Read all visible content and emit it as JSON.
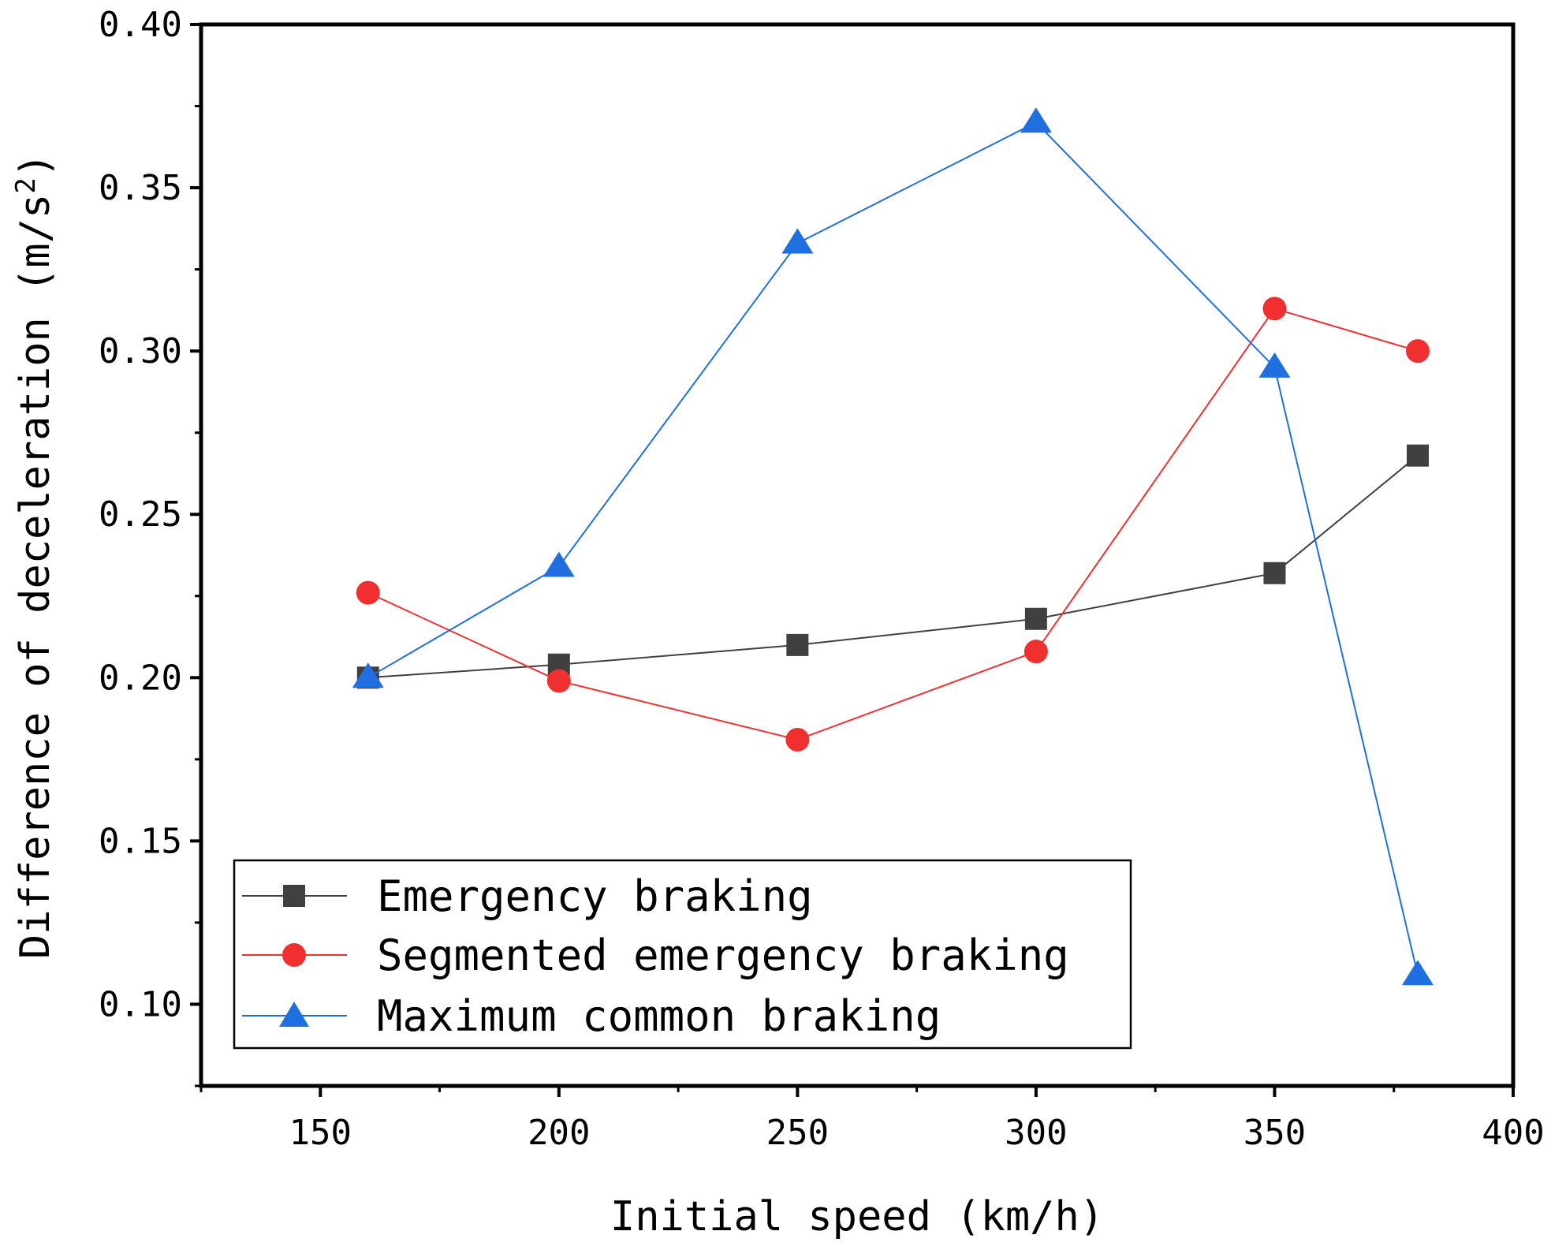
{
  "chart_data": {
    "type": "line",
    "title": "",
    "xlabel": "Initial speed (km/h)",
    "ylabel": "Difference of deceleration (m/s",
    "ylabel_sup": "2",
    "ylabel_close": ")",
    "xlim": [
      125,
      400
    ],
    "ylim": [
      0.075,
      0.4
    ],
    "xticks": [
      "150",
      "200",
      "250",
      "300",
      "350",
      "400"
    ],
    "yticks": [
      "0.10",
      "0.15",
      "0.20",
      "0.25",
      "0.30",
      "0.35",
      "0.40"
    ],
    "x": [
      160,
      200,
      250,
      300,
      350,
      380
    ],
    "series": [
      {
        "name": "Emergency braking",
        "color": "#404040",
        "marker": "square",
        "values": [
          0.2,
          0.204,
          0.21,
          0.218,
          0.232,
          0.268
        ]
      },
      {
        "name": "Segmented emergency braking",
        "color": "#f03030",
        "marker": "circle",
        "values": [
          0.226,
          0.199,
          0.181,
          0.208,
          0.313,
          0.3
        ]
      },
      {
        "name": "Maximum common braking",
        "color": "#1f6fe0",
        "marker": "triangle",
        "values": [
          0.2,
          0.234,
          0.333,
          0.37,
          0.295,
          0.109
        ]
      }
    ],
    "legend_position": "bottom-left",
    "grid": false
  }
}
